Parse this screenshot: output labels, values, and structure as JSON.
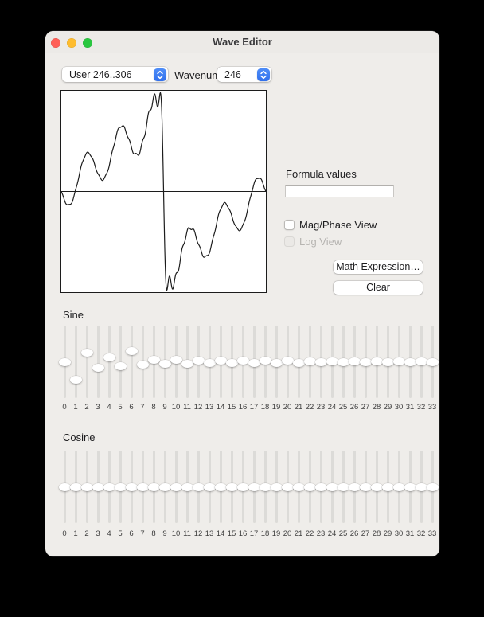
{
  "window": {
    "title": "Wave Editor"
  },
  "toolbar": {
    "wave_range_selector": {
      "value": "User 246..306"
    },
    "wavenum": {
      "label": "Wavenum",
      "value": "246"
    }
  },
  "panel": {
    "formula": {
      "label": "Formula values",
      "value": ""
    },
    "mag_phase": {
      "label": "Mag/Phase View",
      "checked": false,
      "enabled": true
    },
    "log_view": {
      "label": "Log View",
      "checked": false,
      "enabled": false
    },
    "buttons": {
      "math_expression": "Math Expression…",
      "clear": "Clear"
    }
  },
  "sine": {
    "label": "Sine",
    "values": [
      0,
      -0.57,
      0.29,
      -0.19,
      0.15,
      -0.13,
      0.33,
      -0.079,
      0.069,
      -0.061,
      0.055,
      -0.05,
      0.046,
      -0.042,
      0.039,
      -0.037,
      0.034,
      -0.032,
      0.031,
      -0.029,
      0.028,
      -0.026,
      0.025,
      -0.024,
      0.023,
      -0.022,
      0.021,
      -0.02,
      0.02,
      -0.019,
      0.018,
      -0.018,
      0.017,
      -0.017
    ]
  },
  "cosine": {
    "label": "Cosine",
    "values": [
      0,
      0,
      0,
      0,
      0,
      0,
      0,
      0,
      0,
      0,
      0,
      0,
      0,
      0,
      0,
      0,
      0,
      0,
      0,
      0,
      0,
      0,
      0,
      0,
      0,
      0,
      0,
      0,
      0,
      0,
      0,
      0,
      0,
      0
    ]
  },
  "slider_ticks": [
    "0",
    "1",
    "2",
    "3",
    "4",
    "5",
    "6",
    "7",
    "8",
    "9",
    "10",
    "11",
    "12",
    "13",
    "14",
    "15",
    "16",
    "17",
    "18",
    "19",
    "20",
    "21",
    "22",
    "23",
    "24",
    "25",
    "26",
    "27",
    "28",
    "29",
    "30",
    "31",
    "32",
    "33"
  ],
  "colors": {
    "traffic_red": "#ff5f57",
    "traffic_yellow": "#febc2e",
    "traffic_green": "#29c73f",
    "accent_blue": "#3b7df2",
    "wave_stroke": "#1c1c1c"
  }
}
